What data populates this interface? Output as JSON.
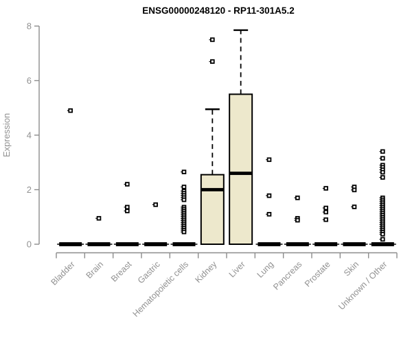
{
  "chart_data": {
    "type": "boxplot",
    "title": "ENSG00000248120 - RP11-301A5.2",
    "ylabel": "Expression",
    "xlabel": "",
    "ylim": [
      0,
      8
    ],
    "yticks": [
      0,
      2,
      4,
      6,
      8
    ],
    "grid": false,
    "legend": "none",
    "categories": [
      "Bladder",
      "Brain",
      "Breast",
      "Gastric",
      "Hematopoietic cells",
      "Kidney",
      "Liver",
      "Lung",
      "Pancreas",
      "Prostate",
      "Skin",
      "Unknown / Other"
    ],
    "boxes": [
      {
        "category": "Bladder",
        "q1": 0,
        "median": 0,
        "q3": 0,
        "whisker_low": 0,
        "whisker_high": 0,
        "outliers": [
          4.9
        ]
      },
      {
        "category": "Brain",
        "q1": 0,
        "median": 0,
        "q3": 0,
        "whisker_low": 0,
        "whisker_high": 0,
        "outliers": [
          0.95
        ]
      },
      {
        "category": "Breast",
        "q1": 0,
        "median": 0,
        "q3": 0,
        "whisker_low": 0,
        "whisker_high": 0,
        "outliers": [
          2.2,
          1.36,
          1.22
        ]
      },
      {
        "category": "Gastric",
        "q1": 0,
        "median": 0,
        "q3": 0,
        "whisker_low": 0,
        "whisker_high": 0,
        "outliers": [
          1.45
        ]
      },
      {
        "category": "Hematopoietic cells",
        "q1": 0,
        "median": 0,
        "q3": 0,
        "whisker_low": 0,
        "whisker_high": 0,
        "outliers": [
          2.65,
          2.1,
          1.95,
          1.87,
          1.79,
          1.71,
          1.63,
          1.36,
          1.29,
          1.22,
          1.15,
          1.08,
          1.01,
          0.94,
          0.87,
          0.8,
          0.73,
          0.66,
          0.59,
          0.52,
          0.45
        ]
      },
      {
        "category": "Kidney",
        "q1": 0,
        "median": 2.0,
        "q3": 2.55,
        "whisker_low": 0,
        "whisker_high": 4.95,
        "outliers": [
          7.5,
          6.7
        ]
      },
      {
        "category": "Liver",
        "q1": 0,
        "median": 2.6,
        "q3": 5.5,
        "whisker_low": 0,
        "whisker_high": 7.85,
        "outliers": []
      },
      {
        "category": "Lung",
        "q1": 0,
        "median": 0,
        "q3": 0,
        "whisker_low": 0,
        "whisker_high": 0,
        "outliers": [
          3.1,
          1.78,
          1.1
        ]
      },
      {
        "category": "Pancreas",
        "q1": 0,
        "median": 0,
        "q3": 0,
        "whisker_low": 0,
        "whisker_high": 0,
        "outliers": [
          1.7,
          0.95,
          0.88
        ]
      },
      {
        "category": "Prostate",
        "q1": 0,
        "median": 0,
        "q3": 0,
        "whisker_low": 0,
        "whisker_high": 0,
        "outliers": [
          2.05,
          1.33,
          1.18,
          0.9
        ]
      },
      {
        "category": "Skin",
        "q1": 0,
        "median": 0,
        "q3": 0,
        "whisker_low": 0,
        "whisker_high": 0,
        "outliers": [
          2.1,
          1.99,
          1.37
        ]
      },
      {
        "category": "Unknown / Other",
        "q1": 0,
        "median": 0,
        "q3": 0,
        "whisker_low": 0,
        "whisker_high": 0,
        "outliers": [
          3.4,
          3.15,
          2.9,
          2.82,
          2.73,
          2.64,
          2.45,
          1.7,
          1.63,
          1.56,
          1.49,
          1.42,
          1.35,
          1.28,
          1.21,
          1.14,
          1.07,
          1.0,
          0.93,
          0.86,
          0.79,
          0.72,
          0.65,
          0.58,
          0.51,
          0.44,
          0.37,
          0.18
        ]
      }
    ],
    "colors": {
      "box_fill": "#EDE8CC",
      "box_stroke": "#000000",
      "median": "#000000",
      "whisker": "#000000",
      "outlier_stroke": "#000000",
      "outlier_fill": "#ffffff",
      "axis": "#8c8c8c",
      "tick_label": "#919191",
      "title": "#000000",
      "background": "#ffffff"
    }
  }
}
